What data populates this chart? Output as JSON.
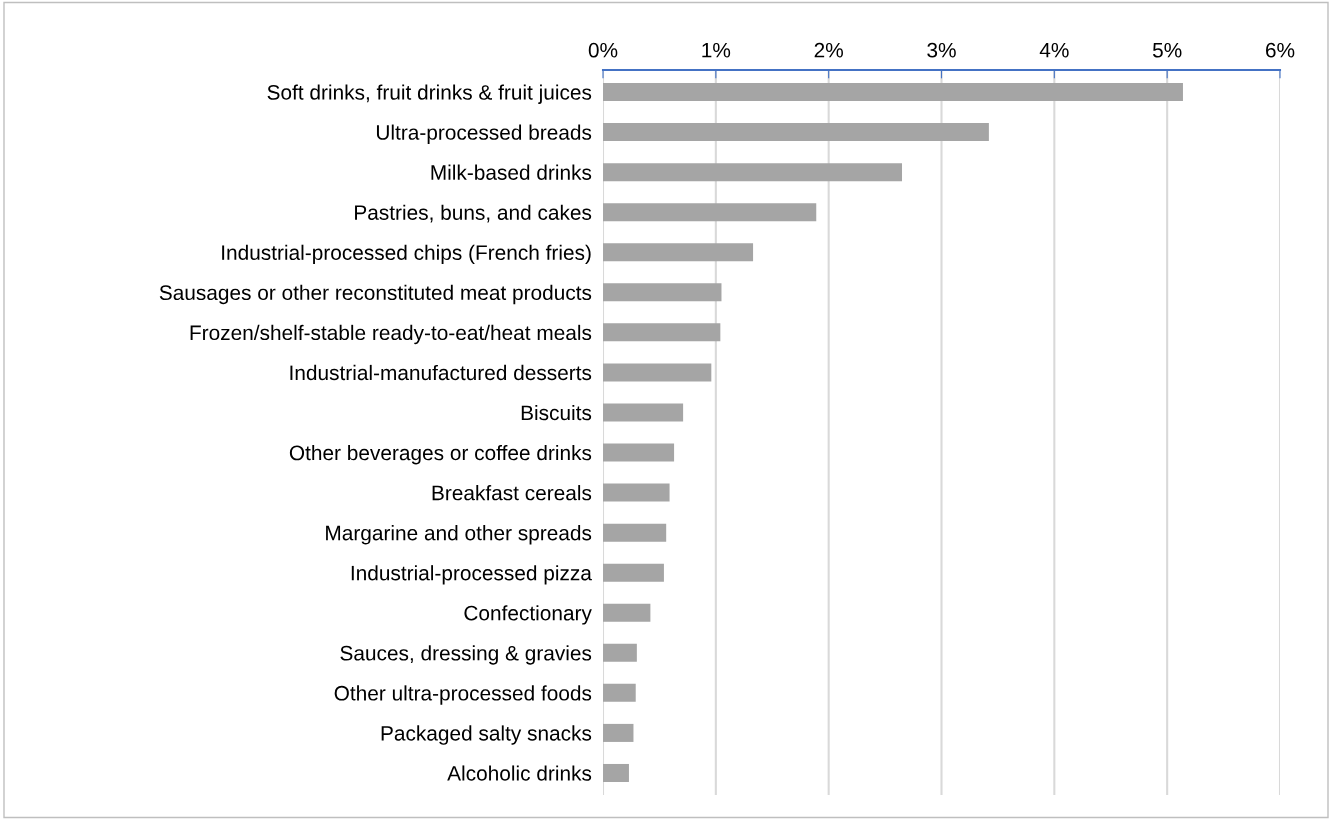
{
  "chart_data": {
    "type": "bar",
    "orientation": "horizontal",
    "categories": [
      "Soft drinks, fruit drinks & fruit juices",
      "Ultra-processed breads",
      "Milk-based drinks",
      "Pastries, buns, and cakes",
      "Industrial-processed chips (French fries)",
      "Sausages or other reconstituted meat products",
      "Frozen/shelf-stable ready-to-eat/heat meals",
      "Industrial-manufactured desserts",
      "Biscuits",
      "Other beverages or coffee drinks",
      "Breakfast cereals",
      "Margarine and other spreads",
      "Industrial-processed pizza",
      "Confectionary",
      "Sauces, dressing & gravies",
      "Other ultra-processed foods",
      "Packaged salty snacks",
      "Alcoholic drinks"
    ],
    "values": [
      5.14,
      3.42,
      2.65,
      1.89,
      1.33,
      1.05,
      1.04,
      0.96,
      0.71,
      0.63,
      0.59,
      0.56,
      0.54,
      0.42,
      0.3,
      0.29,
      0.27,
      0.23
    ],
    "color": "#a5a5a5",
    "xlim": [
      0,
      6
    ],
    "xticks": [
      {
        "value": 0,
        "label": "0%"
      },
      {
        "value": 1,
        "label": "1%"
      },
      {
        "value": 2,
        "label": "2%"
      },
      {
        "value": 3,
        "label": "3%"
      },
      {
        "value": 4,
        "label": "4%"
      },
      {
        "value": 5,
        "label": "5%"
      },
      {
        "value": 6,
        "label": "6%"
      }
    ],
    "grid": "x"
  }
}
